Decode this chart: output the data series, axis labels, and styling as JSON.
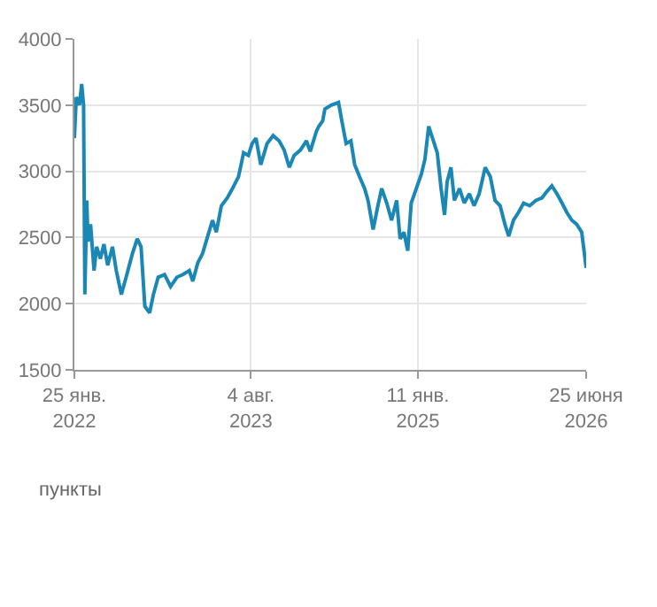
{
  "chart_data": {
    "type": "line",
    "x": [
      "2022-01-25",
      "2022-01-31",
      "2022-02-10",
      "2022-02-17",
      "2022-02-23",
      "2022-02-27",
      "2022-03-05",
      "2022-03-09",
      "2022-03-17",
      "2022-03-28",
      "2022-04-05",
      "2022-04-17",
      "2022-04-28",
      "2022-05-10",
      "2022-05-25",
      "2022-06-06",
      "2022-06-22",
      "2022-07-07",
      "2022-07-27",
      "2022-08-11",
      "2022-08-23",
      "2022-09-04",
      "2022-09-19",
      "2022-10-01",
      "2022-10-16",
      "2022-11-05",
      "2022-11-24",
      "2022-12-14",
      "2023-01-02",
      "2023-01-22",
      "2023-02-02",
      "2023-02-18",
      "2023-03-05",
      "2023-03-21",
      "2023-04-05",
      "2023-04-17",
      "2023-05-03",
      "2023-05-22",
      "2023-06-07",
      "2023-06-26",
      "2023-07-12",
      "2023-07-27",
      "2023-08-08",
      "2023-08-20",
      "2023-09-04",
      "2023-09-24",
      "2023-10-13",
      "2023-11-01",
      "2023-11-17",
      "2023-12-03",
      "2023-12-18",
      "2024-01-07",
      "2024-01-26",
      "2024-02-07",
      "2024-02-26",
      "2024-03-05",
      "2024-03-17",
      "2024-03-24",
      "2024-04-13",
      "2024-05-06",
      "2024-05-18",
      "2024-05-30",
      "2024-06-14",
      "2024-06-26",
      "2024-07-11",
      "2024-07-27",
      "2024-08-07",
      "2024-08-23",
      "2024-09-07",
      "2024-09-19",
      "2024-10-05",
      "2024-10-20",
      "2024-11-05",
      "2024-11-16",
      "2024-11-28",
      "2024-12-10",
      "2024-12-21",
      "2025-01-06",
      "2025-01-22",
      "2025-02-02",
      "2025-02-14",
      "2025-02-26",
      "2025-03-13",
      "2025-03-25",
      "2025-04-05",
      "2025-04-13",
      "2025-04-25",
      "2025-05-06",
      "2025-05-22",
      "2025-06-06",
      "2025-06-22",
      "2025-07-07",
      "2025-07-23",
      "2025-08-11",
      "2025-08-27",
      "2025-09-11",
      "2025-09-27",
      "2025-10-12",
      "2025-10-24",
      "2025-11-08",
      "2025-11-24",
      "2025-12-10",
      "2025-12-29",
      "2026-01-18",
      "2026-02-06",
      "2026-02-22",
      "2026-03-09",
      "2026-03-25",
      "2026-04-10",
      "2026-04-25",
      "2026-05-11",
      "2026-05-26",
      "2026-06-11",
      "2026-06-25"
    ],
    "series": [
      {
        "color": "#1b87b4",
        "values": [
          3250,
          3560,
          3500,
          3660,
          3500,
          2070,
          2780,
          2470,
          2600,
          2250,
          2430,
          2340,
          2450,
          2290,
          2430,
          2250,
          2070,
          2200,
          2380,
          2490,
          2430,
          1980,
          1930,
          2070,
          2200,
          2220,
          2130,
          2200,
          2220,
          2250,
          2170,
          2310,
          2380,
          2510,
          2630,
          2540,
          2740,
          2800,
          2870,
          2960,
          3140,
          3120,
          3210,
          3250,
          3050,
          3210,
          3270,
          3230,
          3160,
          3030,
          3120,
          3160,
          3230,
          3150,
          3300,
          3340,
          3380,
          3470,
          3500,
          3520,
          3360,
          3210,
          3230,
          3050,
          2960,
          2870,
          2780,
          2560,
          2740,
          2870,
          2760,
          2630,
          2780,
          2490,
          2540,
          2400,
          2760,
          2870,
          2980,
          3090,
          3340,
          3250,
          3140,
          2870,
          2670,
          2920,
          3030,
          2780,
          2870,
          2760,
          2830,
          2740,
          2830,
          3030,
          2960,
          2780,
          2740,
          2600,
          2510,
          2630,
          2690,
          2760,
          2740,
          2780,
          2800,
          2850,
          2890,
          2830,
          2760,
          2690,
          2630,
          2600,
          2540,
          2270
        ]
      }
    ],
    "xlim": [
      "2022-01-25",
      "2026-06-25"
    ],
    "xticks": [
      {
        "value": "2022-01-25",
        "label": "25 янв.\n2022"
      },
      {
        "value": "2023-08-04",
        "label": "4 авг.\n2023"
      },
      {
        "value": "2025-01-11",
        "label": "11 янв.\n2025"
      },
      {
        "value": "2026-06-25",
        "label": "25 июня\n2026"
      }
    ],
    "ylim": [
      1500,
      4000
    ],
    "yticks": [
      1500,
      2000,
      2500,
      3000,
      3500,
      4000
    ],
    "grid": true,
    "line_style": "solid",
    "marker": "none",
    "annotations": [
      "пункты"
    ]
  }
}
